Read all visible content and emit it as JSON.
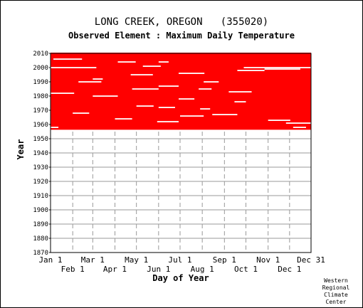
{
  "chart_data": {
    "type": "heatmap",
    "title": "LONG CREEK, OREGON   (355020)",
    "subtitle": "Observed Element : Maximum Daily Temperature",
    "xlabel": "Day of Year",
    "ylabel": "Year",
    "xlim": [
      1,
      365
    ],
    "ylim": [
      1870,
      2010
    ],
    "y_ticks": [
      1870,
      1880,
      1890,
      1900,
      1910,
      1920,
      1930,
      1940,
      1950,
      1960,
      1970,
      1980,
      1990,
      2000,
      2010
    ],
    "x_ticks_upper": [
      {
        "label": "Jan 1",
        "day": 1
      },
      {
        "label": "Mar 1",
        "day": 60
      },
      {
        "label": "May 1",
        "day": 121
      },
      {
        "label": "Jul 1",
        "day": 182
      },
      {
        "label": "Sep 1",
        "day": 244
      },
      {
        "label": "Nov 1",
        "day": 305
      },
      {
        "label": "Dec 31",
        "day": 365
      }
    ],
    "x_ticks_lower": [
      {
        "label": "Feb 1",
        "day": 32
      },
      {
        "label": "Apr 1",
        "day": 91
      },
      {
        "label": "Jun 1",
        "day": 152
      },
      {
        "label": "Aug 1",
        "day": 213
      },
      {
        "label": "Oct 1",
        "day": 274
      },
      {
        "label": "Dec 1",
        "day": 335
      }
    ],
    "grid": true,
    "colors": {
      "observed": "#ff0000",
      "missing": "#ffffff",
      "grid": "#999999"
    },
    "record_start_year": 1957,
    "record_end_year": 2010,
    "full_years": [
      2010,
      2009,
      2008
    ],
    "missing_runs": [
      {
        "year": 2006,
        "start": 5,
        "end": 45
      },
      {
        "year": 2004,
        "start": 95,
        "end": 120
      },
      {
        "year": 2004,
        "start": 152,
        "end": 166
      },
      {
        "year": 2001,
        "start": 130,
        "end": 155
      },
      {
        "year": 2000,
        "start": 1,
        "end": 65
      },
      {
        "year": 2000,
        "start": 271,
        "end": 365
      },
      {
        "year": 1999,
        "start": 300,
        "end": 350
      },
      {
        "year": 1998,
        "start": 262,
        "end": 300
      },
      {
        "year": 1996,
        "start": 180,
        "end": 216
      },
      {
        "year": 1995,
        "start": 113,
        "end": 144
      },
      {
        "year": 1992,
        "start": 60,
        "end": 74
      },
      {
        "year": 1990,
        "start": 40,
        "end": 72
      },
      {
        "year": 1990,
        "start": 215,
        "end": 236
      },
      {
        "year": 1987,
        "start": 152,
        "end": 180
      },
      {
        "year": 1985,
        "start": 115,
        "end": 152
      },
      {
        "year": 1985,
        "start": 208,
        "end": 226
      },
      {
        "year": 1983,
        "start": 250,
        "end": 282
      },
      {
        "year": 1982,
        "start": 1,
        "end": 34
      },
      {
        "year": 1980,
        "start": 60,
        "end": 95
      },
      {
        "year": 1978,
        "start": 180,
        "end": 202
      },
      {
        "year": 1976,
        "start": 258,
        "end": 274
      },
      {
        "year": 1973,
        "start": 121,
        "end": 145
      },
      {
        "year": 1972,
        "start": 152,
        "end": 175
      },
      {
        "year": 1971,
        "start": 210,
        "end": 224
      },
      {
        "year": 1968,
        "start": 32,
        "end": 55
      },
      {
        "year": 1967,
        "start": 227,
        "end": 262
      },
      {
        "year": 1966,
        "start": 182,
        "end": 215
      },
      {
        "year": 1964,
        "start": 91,
        "end": 115
      },
      {
        "year": 1963,
        "start": 305,
        "end": 336
      },
      {
        "year": 1962,
        "start": 150,
        "end": 180
      },
      {
        "year": 1961,
        "start": 330,
        "end": 365
      },
      {
        "year": 1958,
        "start": 1,
        "end": 12
      },
      {
        "year": 1958,
        "start": 340,
        "end": 358
      }
    ]
  },
  "credit_lines": [
    "Western",
    "Regional",
    "Climate",
    "Center"
  ]
}
